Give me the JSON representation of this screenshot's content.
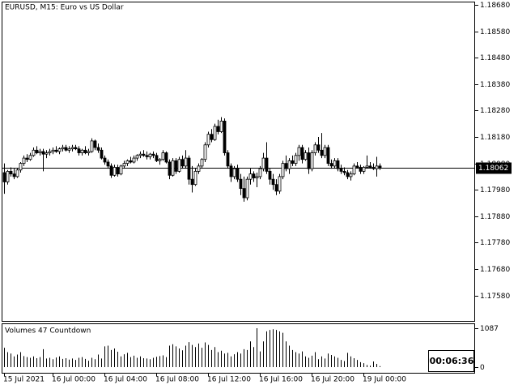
{
  "chart_data": [
    {
      "type": "candlestick",
      "title": "EURUSD, M15:  Euro vs US Dollar",
      "ylim": [
        1.17484,
        1.18692
      ],
      "yticks": [
        {
          "value": 1.1868,
          "label": "1.18680"
        },
        {
          "value": 1.1858,
          "label": "1.18580"
        },
        {
          "value": 1.1848,
          "label": "1.18480"
        },
        {
          "value": 1.1838,
          "label": "1.18380"
        },
        {
          "value": 1.1828,
          "label": "1.18280"
        },
        {
          "value": 1.1818,
          "label": "1.18180"
        },
        {
          "value": 1.1808,
          "label": "1.18080"
        },
        {
          "value": 1.1798,
          "label": "1.17980"
        },
        {
          "value": 1.1788,
          "label": "1.17880"
        },
        {
          "value": 1.1778,
          "label": "1.17780"
        },
        {
          "value": 1.1768,
          "label": "1.17680"
        },
        {
          "value": 1.1758,
          "label": "1.17580"
        }
      ],
      "current_price": {
        "value": 1.18062,
        "label": "1.18062"
      },
      "up_color": "#ffffff",
      "down_color": "#000000",
      "line_color": "#000000",
      "open": [
        1.18045,
        1.1801,
        1.1805,
        1.1804,
        1.1803,
        1.18055,
        1.1808,
        1.181,
        1.18095,
        1.1811,
        1.1813,
        1.1812,
        1.18125,
        1.18115,
        1.1812,
        1.18125,
        1.1813,
        1.18125,
        1.18135,
        1.1814,
        1.1813,
        1.18135,
        1.1814,
        1.18135,
        1.1812,
        1.1813,
        1.1812,
        1.18125,
        1.18165,
        1.1814,
        1.1813,
        1.181,
        1.18085,
        1.1807,
        1.18035,
        1.18065,
        1.1804,
        1.1807,
        1.1808,
        1.1809,
        1.18085,
        1.181,
        1.1811,
        1.18115,
        1.1811,
        1.18105,
        1.18115,
        1.1811,
        1.1809,
        1.18095,
        1.1812,
        1.18085,
        1.18035,
        1.1809,
        1.1805,
        1.18095,
        1.1807,
        1.181,
        1.1802,
        1.18,
        1.1805,
        1.1807,
        1.18095,
        1.1815,
        1.1819,
        1.1817,
        1.1822,
        1.182,
        1.1824,
        1.1812,
        1.1807,
        1.1803,
        1.1806,
        1.1802,
        1.17985,
        1.1795,
        1.1802,
        1.1804,
        1.18025,
        1.1803,
        1.1806,
        1.181,
        1.1805,
        1.1802,
        1.18,
        1.17975,
        1.1803,
        1.1808,
        1.1806,
        1.1809,
        1.1808,
        1.1811,
        1.1814,
        1.18095,
        1.1812,
        1.1806,
        1.1812,
        1.1815,
        1.1813,
        1.1811,
        1.1814,
        1.1808,
        1.1807,
        1.1809,
        1.1806,
        1.1805,
        1.18045,
        1.1803,
        1.1804,
        1.1807,
        1.18065,
        1.1805,
        1.18065,
        1.1807,
        1.18065,
        1.1806,
        1.1807
      ],
      "high": [
        1.1808,
        1.18055,
        1.18065,
        1.1806,
        1.1806,
        1.18085,
        1.1811,
        1.18115,
        1.1812,
        1.1814,
        1.18145,
        1.18135,
        1.18135,
        1.1813,
        1.18135,
        1.1814,
        1.18145,
        1.1814,
        1.1815,
        1.1815,
        1.18145,
        1.1815,
        1.1815,
        1.18145,
        1.18135,
        1.18145,
        1.18135,
        1.18175,
        1.1817,
        1.18155,
        1.1814,
        1.1811,
        1.18095,
        1.1808,
        1.18075,
        1.18075,
        1.18075,
        1.1809,
        1.18095,
        1.18105,
        1.1811,
        1.18115,
        1.18125,
        1.1813,
        1.18125,
        1.1812,
        1.18125,
        1.1812,
        1.181,
        1.1813,
        1.18125,
        1.18095,
        1.181,
        1.181,
        1.18105,
        1.1811,
        1.1813,
        1.1811,
        1.1807,
        1.1806,
        1.1808,
        1.181,
        1.1816,
        1.182,
        1.1821,
        1.1823,
        1.18245,
        1.18255,
        1.1825,
        1.1813,
        1.1808,
        1.1807,
        1.18075,
        1.1804,
        1.1803,
        1.1803,
        1.1806,
        1.1805,
        1.18045,
        1.1807,
        1.1812,
        1.1816,
        1.1806,
        1.1804,
        1.1802,
        1.1804,
        1.1809,
        1.1811,
        1.181,
        1.1811,
        1.1812,
        1.1815,
        1.1815,
        1.1813,
        1.1814,
        1.1813,
        1.1816,
        1.1818,
        1.18195,
        1.1815,
        1.1815,
        1.18095,
        1.181,
        1.181,
        1.18075,
        1.18065,
        1.18055,
        1.1805,
        1.1808,
        1.18085,
        1.18075,
        1.1807,
        1.1811,
        1.18085,
        1.1808,
        1.18105,
        1.1808
      ],
      "low": [
        1.17965,
        1.18,
        1.1803,
        1.1802,
        1.18025,
        1.18045,
        1.1807,
        1.18085,
        1.1809,
        1.18105,
        1.18115,
        1.1811,
        1.1805,
        1.181,
        1.1811,
        1.18115,
        1.1812,
        1.18115,
        1.18125,
        1.18125,
        1.1812,
        1.18125,
        1.1813,
        1.1811,
        1.1811,
        1.18115,
        1.1811,
        1.1812,
        1.1813,
        1.1812,
        1.18095,
        1.18075,
        1.1806,
        1.18025,
        1.1803,
        1.1803,
        1.18035,
        1.1806,
        1.1807,
        1.1808,
        1.1808,
        1.1809,
        1.181,
        1.18105,
        1.18095,
        1.18095,
        1.181,
        1.18085,
        1.18075,
        1.1809,
        1.1808,
        1.1802,
        1.1803,
        1.1804,
        1.18045,
        1.1806,
        1.1806,
        1.18,
        1.1797,
        1.17995,
        1.1804,
        1.1806,
        1.18085,
        1.1814,
        1.1816,
        1.18165,
        1.1819,
        1.18195,
        1.1811,
        1.1806,
        1.1801,
        1.1802,
        1.1801,
        1.1796,
        1.17935,
        1.1794,
        1.18,
        1.1801,
        1.1799,
        1.1802,
        1.1805,
        1.1804,
        1.18,
        1.1798,
        1.1796,
        1.17965,
        1.1802,
        1.1805,
        1.1804,
        1.1807,
        1.1807,
        1.1809,
        1.1808,
        1.1809,
        1.1804,
        1.1805,
        1.1811,
        1.1812,
        1.181,
        1.181,
        1.1807,
        1.1806,
        1.1806,
        1.1805,
        1.1804,
        1.18035,
        1.1802,
        1.18015,
        1.18035,
        1.1806,
        1.1804,
        1.1804,
        1.1806,
        1.1806,
        1.18055,
        1.1803,
        1.18055
      ],
      "close": [
        1.1801,
        1.1805,
        1.1804,
        1.1803,
        1.18055,
        1.1808,
        1.181,
        1.18095,
        1.1811,
        1.1813,
        1.1812,
        1.18125,
        1.18115,
        1.1812,
        1.18125,
        1.1813,
        1.18125,
        1.18135,
        1.1814,
        1.1813,
        1.18135,
        1.1814,
        1.18135,
        1.1812,
        1.1813,
        1.1812,
        1.18125,
        1.18165,
        1.1814,
        1.1813,
        1.181,
        1.18085,
        1.1807,
        1.18035,
        1.18065,
        1.1804,
        1.1807,
        1.1808,
        1.1809,
        1.18085,
        1.181,
        1.1811,
        1.18115,
        1.1811,
        1.18105,
        1.18115,
        1.1811,
        1.1809,
        1.18095,
        1.1812,
        1.18085,
        1.18035,
        1.1809,
        1.1805,
        1.18095,
        1.1807,
        1.181,
        1.1802,
        1.18,
        1.1805,
        1.1807,
        1.18095,
        1.1815,
        1.1819,
        1.1817,
        1.1822,
        1.182,
        1.1824,
        1.1812,
        1.1807,
        1.1803,
        1.1806,
        1.1802,
        1.17985,
        1.1795,
        1.1802,
        1.1804,
        1.18025,
        1.1803,
        1.1806,
        1.181,
        1.1805,
        1.1802,
        1.18,
        1.17975,
        1.1803,
        1.1808,
        1.1806,
        1.1809,
        1.1808,
        1.1811,
        1.1814,
        1.18095,
        1.1812,
        1.1806,
        1.1812,
        1.1815,
        1.1813,
        1.1811,
        1.1814,
        1.1808,
        1.1807,
        1.1809,
        1.1806,
        1.1805,
        1.18045,
        1.1803,
        1.1804,
        1.1807,
        1.18065,
        1.1805,
        1.18065,
        1.1807,
        1.18065,
        1.1806,
        1.1807,
        1.18062
      ]
    },
    {
      "type": "bar",
      "title": "Volumes 47 Countdown",
      "countdown": "00:06:36",
      "ylim": [
        -158,
        1223
      ],
      "yticks": [
        0,
        1087
      ],
      "color": "#000000",
      "categories": [
        "15 Jul 2021",
        null,
        null,
        null,
        null,
        null,
        null,
        null,
        null,
        null,
        null,
        null,
        null,
        null,
        null,
        "16 Jul 00:00",
        null,
        null,
        null,
        null,
        null,
        null,
        null,
        null,
        null,
        null,
        null,
        null,
        null,
        null,
        null,
        "16 Jul 04:00",
        null,
        null,
        null,
        null,
        null,
        null,
        null,
        null,
        null,
        null,
        null,
        null,
        null,
        null,
        null,
        "16 Jul 08:00",
        null,
        null,
        null,
        null,
        null,
        null,
        null,
        null,
        null,
        null,
        null,
        null,
        null,
        null,
        null,
        "16 Jul 12:00",
        null,
        null,
        null,
        null,
        null,
        null,
        null,
        null,
        null,
        null,
        null,
        null,
        null,
        null,
        null,
        "16 Jul 16:00",
        null,
        null,
        null,
        null,
        null,
        null,
        null,
        null,
        null,
        null,
        null,
        null,
        null,
        null,
        null,
        "16 Jul 20:00",
        null,
        null,
        null,
        null,
        null,
        null,
        null,
        null,
        null,
        null,
        null,
        null,
        null,
        null,
        null,
        "19 Jul 00:00",
        null,
        null,
        null,
        null,
        null
      ],
      "values": [
        540,
        420,
        380,
        300,
        350,
        420,
        310,
        280,
        260,
        300,
        250,
        280,
        500,
        240,
        260,
        220,
        270,
        300,
        230,
        250,
        210,
        240,
        200,
        260,
        280,
        230,
        180,
        260,
        220,
        350,
        240,
        580,
        600,
        480,
        520,
        430,
        300,
        360,
        400,
        280,
        320,
        260,
        300,
        250,
        240,
        220,
        260,
        290,
        310,
        330,
        280,
        600,
        640,
        580,
        520,
        470,
        600,
        700,
        620,
        560,
        660,
        540,
        690,
        620,
        480,
        560,
        420,
        460,
        380,
        400,
        300,
        360,
        420,
        380,
        500,
        480,
        720,
        560,
        1087,
        440,
        720,
        1000,
        1040,
        1060,
        1040,
        1000,
        960,
        720,
        600,
        480,
        420,
        380,
        440,
        300,
        260,
        320,
        420,
        220,
        300,
        240,
        380,
        340,
        300,
        260,
        200,
        170,
        400,
        300,
        250,
        200,
        140,
        110,
        60,
        40,
        160,
        90,
        30
      ]
    }
  ]
}
